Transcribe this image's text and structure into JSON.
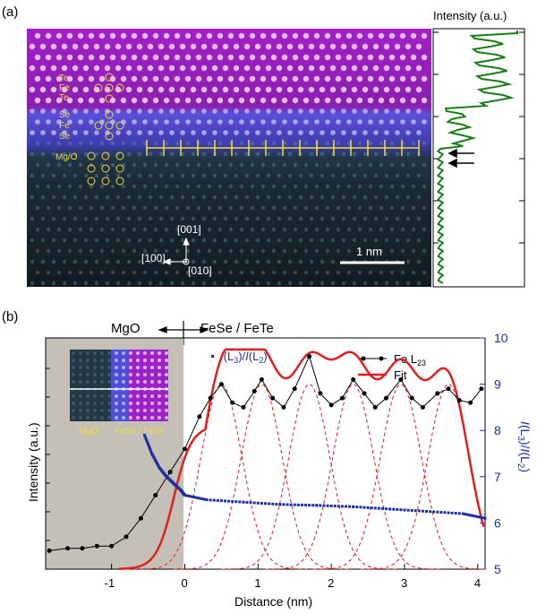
{
  "panel_a": {
    "label": "(a)",
    "intensity_label": "Intensity (a.u.)",
    "atom_labels": [
      "Te",
      "Fe",
      "Te",
      "Se",
      "Fe",
      "Se",
      "Mg/O"
    ],
    "directions": {
      "up": "[001]",
      "left": "[100]",
      "out": "[010]"
    },
    "scalebar": "1 nm",
    "colors": {
      "fete": "#c02be0",
      "fese": "#6a6cff",
      "mgo": "#6fa6b5",
      "profile": "#1a7d1a",
      "marker": "#f2e033"
    }
  },
  "panel_b": {
    "label": "(b)",
    "region_left": "MgO",
    "region_right": "FeSe / FeTe",
    "ratio_label": "I(L3)/I(L2)",
    "inset_left": "MgO",
    "inset_right": "FeSe / FeTe"
  },
  "chart_data": {
    "type": "line",
    "xlabel": "Distance (nm)",
    "ylabel": "Intensity (a.u.)",
    "y2label": "I(L3)/I(L2)",
    "xlim": [
      -1.9,
      4.1
    ],
    "xticks": [
      -1,
      0,
      1,
      2,
      3,
      4
    ],
    "y2lim": [
      5,
      10
    ],
    "y2ticks": [
      5,
      6,
      7,
      8,
      9,
      10
    ],
    "legend": [
      {
        "name": "Fe L23",
        "color": "#000000"
      },
      {
        "name": "Fit",
        "color": "#e02020"
      }
    ],
    "legend_position": "top-right",
    "fit_peaks_nm": [
      0.5,
      1.05,
      1.7,
      2.3,
      2.95,
      3.6
    ],
    "ratio_series": {
      "name": "I(L3)/I(L2)",
      "color": "#1f2f9e",
      "x": [
        -0.55,
        -0.45,
        -0.35,
        -0.25,
        -0.15,
        -0.05,
        0.0,
        0.3,
        0.8,
        1.3,
        1.8,
        2.3,
        2.8,
        3.3,
        3.8,
        4.1
      ],
      "y": [
        7.9,
        7.5,
        7.2,
        7.0,
        6.85,
        6.7,
        6.6,
        6.5,
        6.45,
        6.4,
        6.38,
        6.35,
        6.3,
        6.25,
        6.2,
        6.1
      ]
    },
    "fe_l23_series": {
      "x": [
        -1.85,
        -1.6,
        -1.4,
        -1.2,
        -1.0,
        -0.8,
        -0.6,
        -0.4,
        -0.2,
        0.0,
        0.2,
        0.35,
        0.5,
        0.65,
        0.8,
        0.95,
        1.05,
        1.2,
        1.35,
        1.5,
        1.7,
        1.85,
        2.0,
        2.15,
        2.3,
        2.45,
        2.6,
        2.75,
        2.95,
        3.1,
        3.25,
        3.45,
        3.6,
        3.75,
        3.9,
        4.05
      ],
      "y": [
        0.08,
        0.09,
        0.09,
        0.1,
        0.1,
        0.14,
        0.22,
        0.32,
        0.42,
        0.52,
        0.66,
        0.74,
        0.8,
        0.72,
        0.7,
        0.77,
        0.82,
        0.74,
        0.7,
        0.78,
        0.92,
        0.76,
        0.71,
        0.74,
        0.82,
        0.76,
        0.7,
        0.74,
        0.82,
        0.74,
        0.7,
        0.76,
        0.78,
        0.73,
        0.72,
        0.78
      ]
    }
  }
}
